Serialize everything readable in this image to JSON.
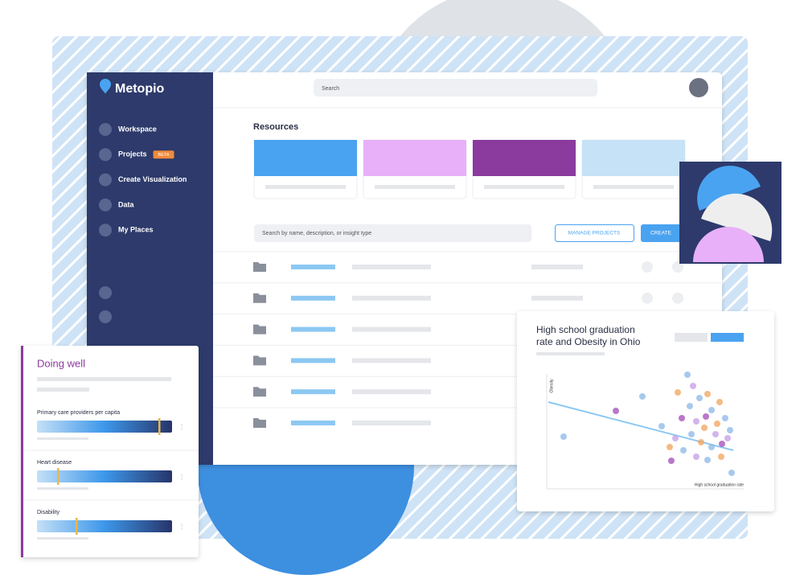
{
  "app": {
    "brand": "Metopio",
    "search": "Search",
    "nav": [
      {
        "label": "Workspace"
      },
      {
        "label": "Projects",
        "badge": "BETA"
      },
      {
        "label": "Create Visualization"
      },
      {
        "label": "Data"
      },
      {
        "label": "My Places"
      }
    ],
    "section_title": "Resources",
    "list_search": "Search by name, description, or insight type",
    "buttons": [
      "MANAGE PROJECTS",
      "CREATE"
    ]
  },
  "doing_well": {
    "title": "Doing well",
    "metrics": [
      "Primary care providers per capita",
      "Heart disease",
      "Disability"
    ]
  },
  "scatter_card": {
    "title_line1": "High school graduation",
    "title_line2": "rate and Obesity in Ohio",
    "y_label": "Obesity",
    "x_label": "High school graduation rate"
  }
}
